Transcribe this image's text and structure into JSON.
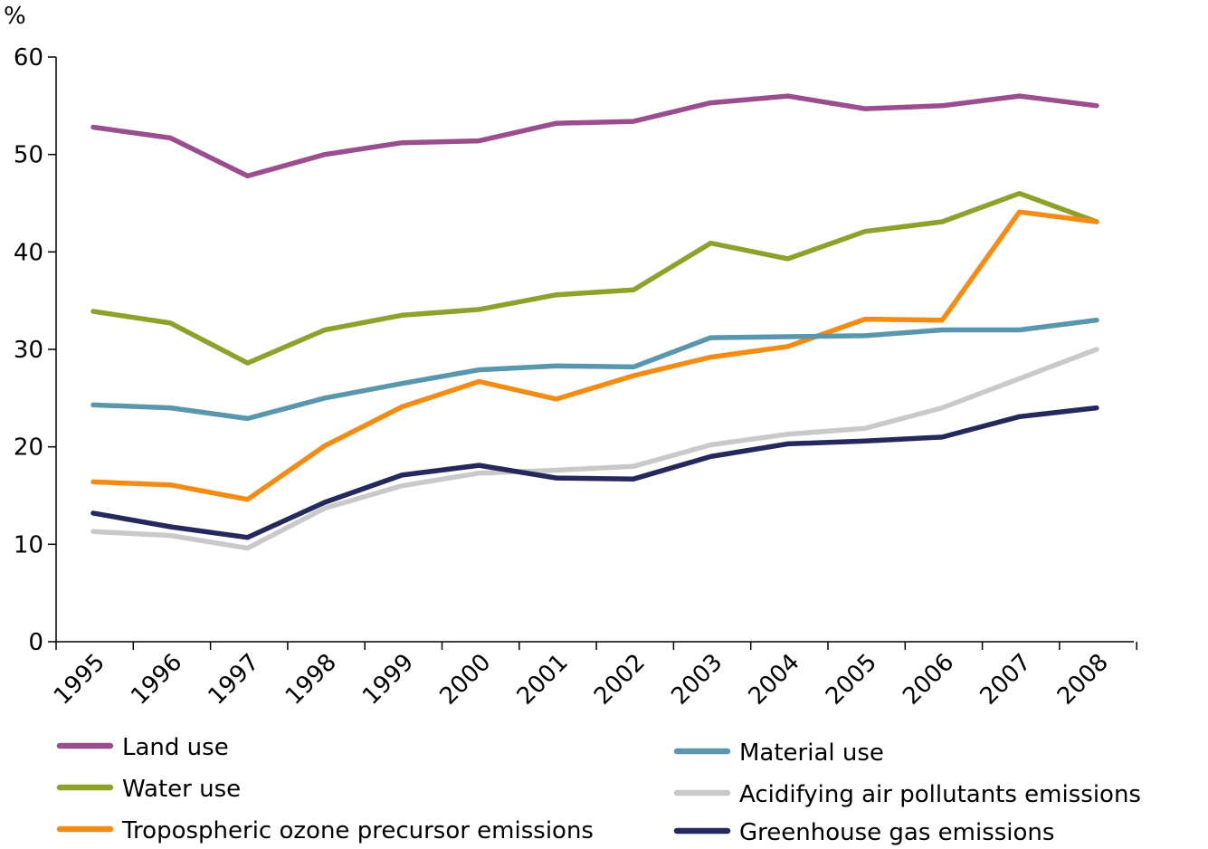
{
  "chart_data": {
    "type": "line",
    "ylabel": "%",
    "ylim": [
      0,
      60
    ],
    "yticks": [
      0,
      10,
      20,
      30,
      40,
      50,
      60
    ],
    "categories": [
      "1995",
      "1996",
      "1997",
      "1998",
      "1999",
      "2000",
      "2001",
      "2002",
      "2003",
      "2004",
      "2005",
      "2006",
      "2007",
      "2008"
    ],
    "grid": false,
    "legend_position": "bottom",
    "series": [
      {
        "name": "Land use",
        "color": "#9b4e8e",
        "values": [
          52.8,
          51.7,
          47.8,
          50.0,
          51.2,
          51.4,
          53.2,
          53.4,
          55.3,
          56.0,
          54.7,
          55.0,
          56.0,
          55.0
        ]
      },
      {
        "name": "Water use",
        "color": "#8fa02b",
        "values": [
          33.9,
          32.7,
          28.6,
          32.0,
          33.5,
          34.1,
          35.6,
          36.1,
          40.9,
          39.3,
          42.1,
          43.1,
          46.0,
          43.1
        ]
      },
      {
        "name": "Tropospheric ozone precursor emissions",
        "color": "#f28c14",
        "values": [
          16.4,
          16.1,
          14.6,
          20.1,
          24.1,
          26.7,
          24.9,
          27.3,
          29.2,
          30.3,
          33.1,
          33.0,
          44.1,
          43.1
        ]
      },
      {
        "name": "Material use",
        "color": "#5b97ac",
        "values": [
          24.3,
          24.0,
          22.9,
          25.0,
          26.5,
          27.9,
          28.3,
          28.2,
          31.2,
          31.3,
          31.4,
          32.0,
          32.0,
          33.0
        ]
      },
      {
        "name": "Acidifying air pollutants emissions",
        "color": "#c9c9c9",
        "values": [
          11.3,
          10.9,
          9.6,
          13.7,
          16.0,
          17.3,
          17.6,
          18.0,
          20.2,
          21.3,
          21.9,
          24.0,
          27.0,
          30.0
        ]
      },
      {
        "name": "Greenhouse gas emissions",
        "color": "#25285a",
        "values": [
          13.2,
          11.8,
          10.7,
          14.3,
          17.1,
          18.1,
          16.8,
          16.7,
          19.0,
          20.3,
          20.6,
          21.0,
          23.1,
          24.0
        ]
      }
    ]
  }
}
